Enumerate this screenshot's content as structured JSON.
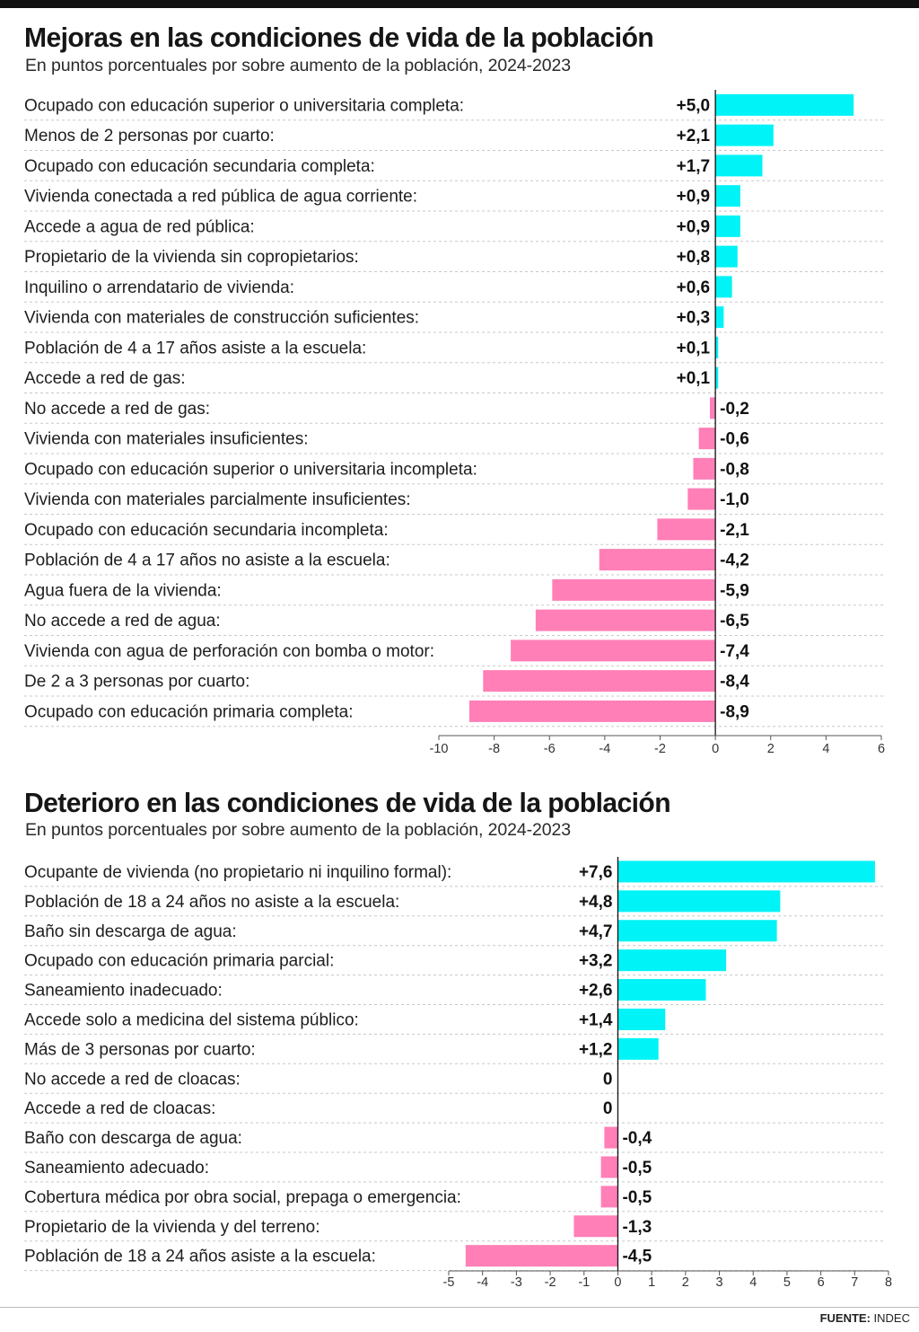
{
  "colors": {
    "positive": "#00f3f7",
    "negative": "#ff7fb6",
    "grid": "#c8c8c8"
  },
  "source": {
    "label": "FUENTE:",
    "name": "INDEC"
  },
  "chart_data": [
    {
      "type": "bar",
      "orientation": "horizontal",
      "title": "Mejoras en las condiciones de vida de la población",
      "subtitle": "En puntos porcentuales por sobre aumento de la población, 2024-2023",
      "xlim": [
        -10,
        6
      ],
      "xticks": [
        -10,
        -8,
        -6,
        -4,
        -2,
        0,
        2,
        4,
        6
      ],
      "grid": "dashed row separators",
      "categories": [
        "Ocupado con educación superior o universitaria completa:",
        "Menos de 2 personas por cuarto:",
        "Ocupado con educación secundaria completa:",
        "Vivienda conectada a red pública de agua corriente:",
        "Accede a agua de red pública:",
        "Propietario de la vivienda sin copropietarios:",
        "Inquilino o arrendatario de vivienda:",
        "Vivienda con materiales de construcción suficientes:",
        "Población de 4 a 17 años asiste a la escuela:",
        "Accede a red de gas:",
        "No accede a red de gas:",
        "Vivienda con materiales insuficientes:",
        "Ocupado con educación superior o universitaria incompleta:",
        "Vivienda con materiales parcialmente insuficientes:",
        "Ocupado con educación secundaria incompleta:",
        "Población de 4 a 17 años no asiste a la escuela:",
        "Agua fuera de la vivienda:",
        "No accede a red de agua:",
        "Vivienda con agua de perforación con bomba o motor:",
        "De 2 a 3 personas por cuarto:",
        "Ocupado con educación primaria completa:"
      ],
      "values": [
        5.0,
        2.1,
        1.7,
        0.9,
        0.9,
        0.8,
        0.6,
        0.3,
        0.1,
        0.1,
        -0.2,
        -0.6,
        -0.8,
        -1.0,
        -2.1,
        -4.2,
        -5.9,
        -6.5,
        -7.4,
        -8.4,
        -8.9
      ],
      "value_labels": [
        "+5,0",
        "+2,1",
        "+1,7",
        "+0,9",
        "+0,9",
        "+0,8",
        "+0,6",
        "+0,3",
        "+0,1",
        "+0,1",
        "-0,2",
        "-0,6",
        "-0,8",
        "-1,0",
        "-2,1",
        "-4,2",
        "-5,9",
        "-6,5",
        "-7,4",
        "-8,4",
        "-8,9"
      ]
    },
    {
      "type": "bar",
      "orientation": "horizontal",
      "title": "Deterioro en las condiciones de vida de la población",
      "subtitle": "En puntos porcentuales por sobre aumento de la población, 2024-2023",
      "xlim": [
        -5,
        8
      ],
      "xticks": [
        -5,
        -4,
        -3,
        -2,
        -1,
        0,
        1,
        2,
        3,
        4,
        5,
        6,
        7,
        8
      ],
      "grid": "dashed row separators",
      "categories": [
        "Ocupante de vivienda (no propietario ni inquilino formal):",
        "Población de 18 a 24 años no asiste a la escuela:",
        "Baño sin descarga de agua:",
        "Ocupado con educación primaria parcial:",
        "Saneamiento inadecuado:",
        "Accede solo a medicina del sistema público:",
        "Más de 3 personas por cuarto:",
        "No accede a red de cloacas:",
        "Accede a red de cloacas:",
        "Baño con descarga de agua:",
        "Saneamiento adecuado:",
        "Cobertura médica por obra social, prepaga o emergencia:",
        "Propietario de la vivienda y del terreno:",
        "Población de 18 a 24 años asiste a la escuela:"
      ],
      "values": [
        7.6,
        4.8,
        4.7,
        3.2,
        2.6,
        1.4,
        1.2,
        0,
        0,
        -0.4,
        -0.5,
        -0.5,
        -1.3,
        -4.5
      ],
      "value_labels": [
        "+7,6",
        "+4,8",
        "+4,7",
        "+3,2",
        "+2,6",
        "+1,4",
        "+1,2",
        "0",
        "0",
        "-0,4",
        "-0,5",
        "-0,5",
        "-1,3",
        "-4,5"
      ]
    }
  ]
}
